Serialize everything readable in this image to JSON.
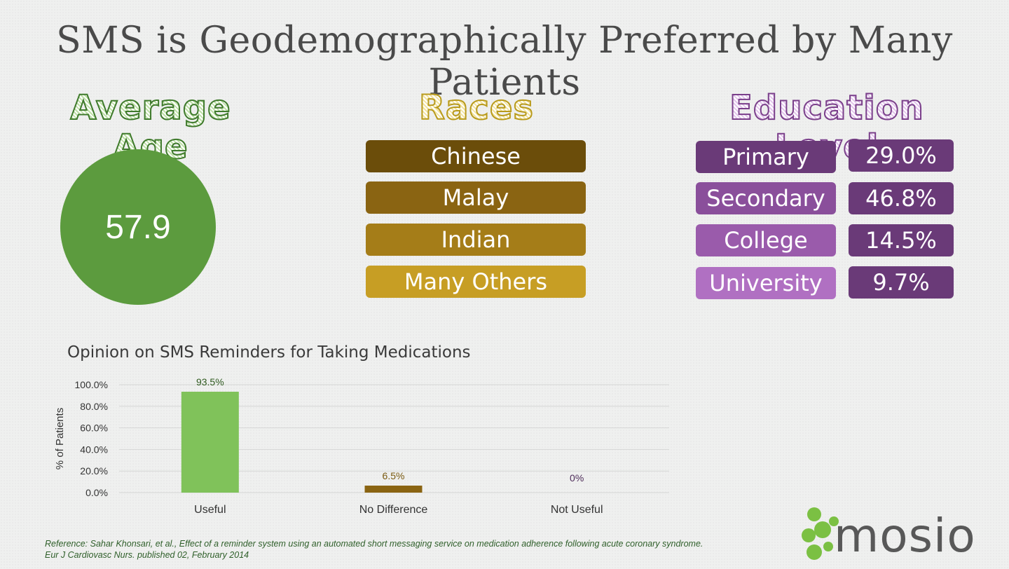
{
  "title": "SMS is Geodemographically Preferred by Many Patients",
  "age": {
    "heading": "Average Age",
    "value": "57.9"
  },
  "races": {
    "heading": "Races",
    "items": [
      {
        "label": "Chinese",
        "color": "#6b4d0a"
      },
      {
        "label": "Malay",
        "color": "#8a6412"
      },
      {
        "label": "Indian",
        "color": "#a57d18"
      },
      {
        "label": "Many Others",
        "color": "#c79e24"
      }
    ]
  },
  "education": {
    "heading": "Education Level",
    "items": [
      {
        "label": "Primary",
        "value": "29.0%",
        "color": "#6a3a78"
      },
      {
        "label": "Secondary",
        "value": "46.8%",
        "color": "#8a4f9b"
      },
      {
        "label": "College",
        "value": "14.5%",
        "color": "#9a5bab"
      },
      {
        "label": "University",
        "value": "9.7%",
        "color": "#b070c2"
      }
    ]
  },
  "chart_data": {
    "type": "bar",
    "title": "Opinion on SMS Reminders for Taking Medications",
    "ylabel": "% of Patients",
    "xlabel": "",
    "categories": [
      "Useful",
      "No Difference",
      "Not Useful"
    ],
    "values": [
      93.5,
      6.5,
      0
    ],
    "data_labels": [
      "93.5%",
      "6.5%",
      "0%"
    ],
    "colors": [
      "#80c25a",
      "#8a6412",
      "#6a3a78"
    ],
    "label_colors": [
      "#2f5a1f",
      "#7a5a10",
      "#4e2c5a"
    ],
    "ylim": [
      0,
      100
    ],
    "yticks": [
      0,
      20,
      40,
      60,
      80,
      100
    ],
    "ytick_labels": [
      "0.0%",
      "20.0%",
      "40.0%",
      "60.0%",
      "80.0%",
      "100.0%"
    ],
    "grid": true,
    "legend": "none"
  },
  "reference": {
    "line1": "Reference: Sahar Khonsari, et al., Effect of a reminder system using an automated short messaging service on medication adherence following acute coronary syndrome.",
    "line2": "Eur J Cardiovasc Nurs. published 02, February 2014"
  },
  "logo": {
    "text": "mosio",
    "icon": "molecule-icon",
    "color": "#7bc043"
  }
}
